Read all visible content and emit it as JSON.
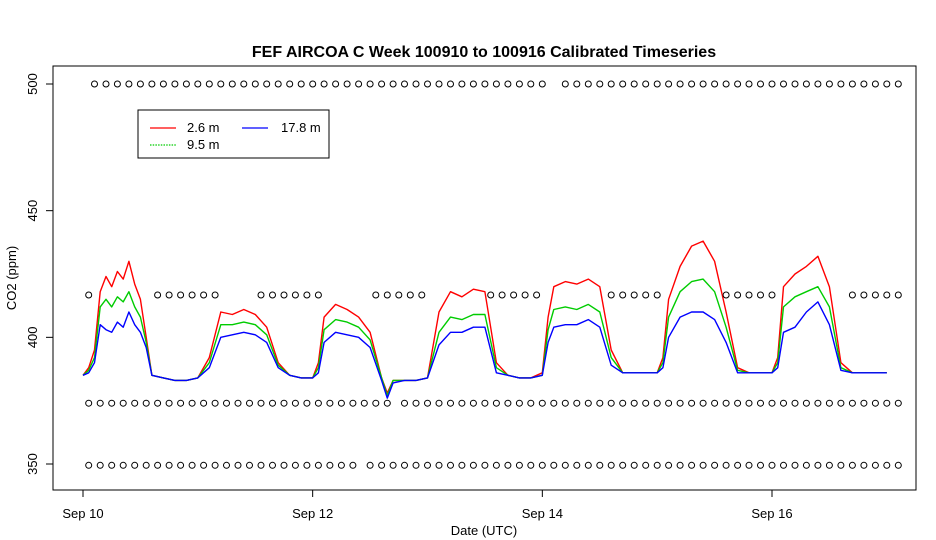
{
  "chart_data": {
    "type": "line",
    "title": "FEF AIRCOA C  Week 100910 to 100916  Calibrated Timeseries",
    "xlabel": "Date (UTC)",
    "ylabel": "CO2 (ppm)",
    "x_unit": "days since 2010-09-10 00:00 UTC",
    "xlim": [
      -0.05,
      7.2
    ],
    "ylim": [
      344,
      505
    ],
    "x_ticks": [
      {
        "value": 0,
        "label": "Sep 10"
      },
      {
        "value": 2,
        "label": "Sep 12"
      },
      {
        "value": 4,
        "label": "Sep 14"
      },
      {
        "value": 6,
        "label": "Sep 16"
      }
    ],
    "y_ticks": [
      {
        "value": 350,
        "label": "350"
      },
      {
        "value": 400,
        "label": "400"
      },
      {
        "value": 450,
        "label": "450"
      },
      {
        "value": 500,
        "label": "500"
      }
    ],
    "legend": {
      "position": "top-left",
      "entries": [
        {
          "label": "2.6 m",
          "color": "#ff0000"
        },
        {
          "label": "9.5 m",
          "color": "#00cc00"
        },
        {
          "label": "17.8 m",
          "color": "#0000ff"
        }
      ]
    },
    "series": [
      {
        "name": "2.6 m",
        "color": "#ff0000",
        "x": [
          0.0,
          0.05,
          0.1,
          0.15,
          0.2,
          0.25,
          0.3,
          0.35,
          0.4,
          0.45,
          0.5,
          0.55,
          0.6,
          0.7,
          0.8,
          0.9,
          1.0,
          1.1,
          1.2,
          1.3,
          1.4,
          1.5,
          1.6,
          1.7,
          1.8,
          1.9,
          2.0,
          2.05,
          2.1,
          2.2,
          2.3,
          2.4,
          2.5,
          2.6,
          2.65,
          2.7,
          2.8,
          2.9,
          3.0,
          3.1,
          3.2,
          3.3,
          3.4,
          3.5,
          3.6,
          3.7,
          3.8,
          3.9,
          4.0,
          4.05,
          4.1,
          4.2,
          4.3,
          4.4,
          4.5,
          4.6,
          4.7,
          4.8,
          4.9,
          5.0,
          5.05,
          5.1,
          5.2,
          5.3,
          5.4,
          5.5,
          5.6,
          5.7,
          5.8,
          5.9,
          6.0,
          6.05,
          6.1,
          6.2,
          6.3,
          6.4,
          6.5,
          6.6,
          6.7,
          6.8,
          6.9,
          7.0
        ],
        "y": [
          385,
          388,
          395,
          418,
          424,
          420,
          426,
          423,
          430,
          421,
          415,
          400,
          385,
          384,
          383,
          383,
          384,
          392,
          410,
          409,
          411,
          409,
          404,
          390,
          385,
          384,
          384,
          390,
          408,
          413,
          411,
          408,
          402,
          384,
          378,
          383,
          383,
          383,
          384,
          410,
          418,
          416,
          419,
          418,
          390,
          385,
          384,
          384,
          386,
          408,
          420,
          422,
          421,
          423,
          420,
          395,
          386,
          386,
          386,
          386,
          392,
          415,
          428,
          436,
          438,
          430,
          410,
          388,
          386,
          386,
          386,
          392,
          420,
          425,
          428,
          432,
          420,
          390,
          386,
          386,
          386,
          386
        ]
      },
      {
        "name": "9.5 m",
        "color": "#00cc00",
        "x": [
          0.0,
          0.05,
          0.1,
          0.15,
          0.2,
          0.25,
          0.3,
          0.35,
          0.4,
          0.45,
          0.5,
          0.55,
          0.6,
          0.7,
          0.8,
          0.9,
          1.0,
          1.1,
          1.2,
          1.3,
          1.4,
          1.5,
          1.6,
          1.7,
          1.8,
          1.9,
          2.0,
          2.05,
          2.1,
          2.2,
          2.3,
          2.4,
          2.5,
          2.6,
          2.65,
          2.7,
          2.8,
          2.9,
          3.0,
          3.1,
          3.2,
          3.3,
          3.4,
          3.5,
          3.6,
          3.7,
          3.8,
          3.9,
          4.0,
          4.05,
          4.1,
          4.2,
          4.3,
          4.4,
          4.5,
          4.6,
          4.7,
          4.8,
          4.9,
          5.0,
          5.05,
          5.1,
          5.2,
          5.3,
          5.4,
          5.5,
          5.6,
          5.7,
          5.8,
          5.9,
          6.0,
          6.05,
          6.1,
          6.2,
          6.3,
          6.4,
          6.5,
          6.6,
          6.7,
          6.8,
          6.9,
          7.0
        ],
        "y": [
          385,
          387,
          392,
          412,
          415,
          412,
          416,
          414,
          418,
          412,
          408,
          398,
          385,
          384,
          383,
          383,
          384,
          390,
          405,
          405,
          406,
          405,
          401,
          389,
          385,
          384,
          384,
          388,
          403,
          407,
          406,
          404,
          399,
          384,
          377,
          383,
          383,
          383,
          384,
          402,
          408,
          407,
          409,
          409,
          388,
          385,
          384,
          384,
          385,
          403,
          411,
          412,
          411,
          413,
          410,
          392,
          386,
          386,
          386,
          386,
          390,
          408,
          418,
          422,
          423,
          418,
          404,
          387,
          386,
          386,
          386,
          390,
          412,
          416,
          418,
          420,
          412,
          388,
          386,
          386,
          386,
          386
        ]
      },
      {
        "name": "17.8 m",
        "color": "#0000ff",
        "x": [
          0.0,
          0.05,
          0.1,
          0.15,
          0.2,
          0.25,
          0.3,
          0.35,
          0.4,
          0.45,
          0.5,
          0.55,
          0.6,
          0.7,
          0.8,
          0.9,
          1.0,
          1.1,
          1.2,
          1.3,
          1.4,
          1.5,
          1.6,
          1.7,
          1.8,
          1.9,
          2.0,
          2.05,
          2.1,
          2.2,
          2.3,
          2.4,
          2.5,
          2.6,
          2.65,
          2.7,
          2.8,
          2.9,
          3.0,
          3.1,
          3.2,
          3.3,
          3.4,
          3.5,
          3.6,
          3.7,
          3.8,
          3.9,
          4.0,
          4.05,
          4.1,
          4.2,
          4.3,
          4.4,
          4.5,
          4.6,
          4.7,
          4.8,
          4.9,
          5.0,
          5.05,
          5.1,
          5.2,
          5.3,
          5.4,
          5.5,
          5.6,
          5.7,
          5.8,
          5.9,
          6.0,
          6.05,
          6.1,
          6.2,
          6.3,
          6.4,
          6.5,
          6.6,
          6.7,
          6.8,
          6.9,
          7.0
        ],
        "y": [
          385,
          386,
          390,
          405,
          403,
          402,
          406,
          404,
          410,
          405,
          402,
          396,
          385,
          384,
          383,
          383,
          384,
          388,
          400,
          401,
          402,
          401,
          398,
          388,
          385,
          384,
          384,
          386,
          398,
          402,
          401,
          400,
          396,
          383,
          376,
          382,
          383,
          383,
          384,
          397,
          402,
          402,
          404,
          404,
          386,
          385,
          384,
          384,
          385,
          398,
          404,
          405,
          405,
          407,
          404,
          389,
          386,
          386,
          386,
          386,
          388,
          400,
          408,
          410,
          410,
          407,
          398,
          386,
          386,
          386,
          386,
          388,
          402,
          404,
          410,
          414,
          405,
          387,
          386,
          386,
          386,
          386
        ]
      }
    ],
    "flag_rows": [
      {
        "y": 500,
        "x": [
          0.1,
          0.2,
          0.3,
          0.4,
          0.5,
          0.6,
          0.7,
          0.8,
          0.9,
          1.0,
          1.1,
          1.2,
          1.3,
          1.4,
          1.5,
          1.6,
          1.7,
          1.8,
          1.9,
          2.0,
          2.1,
          2.2,
          2.3,
          2.4,
          2.5,
          2.6,
          2.7,
          2.8,
          2.9,
          3.0,
          3.1,
          3.2,
          3.3,
          3.4,
          3.5,
          3.6,
          3.7,
          3.8,
          3.9,
          4.0,
          4.2,
          4.3,
          4.4,
          4.5,
          4.6,
          4.7,
          4.8,
          4.9,
          5.0,
          5.1,
          5.2,
          5.3,
          5.4,
          5.5,
          5.6,
          5.7,
          5.8,
          5.9,
          6.0,
          6.1,
          6.2,
          6.3,
          6.4,
          6.5,
          6.6,
          6.7,
          6.8,
          6.9,
          7.0,
          7.1
        ]
      },
      {
        "y": 416.7,
        "x": [
          0.05,
          0.65,
          0.75,
          0.85,
          0.95,
          1.05,
          1.15,
          1.55,
          1.65,
          1.75,
          1.85,
          1.95,
          2.05,
          2.55,
          2.65,
          2.75,
          2.85,
          2.95,
          3.55,
          3.65,
          3.75,
          3.85,
          3.95,
          4.6,
          4.7,
          4.8,
          4.9,
          5.0,
          5.6,
          5.7,
          5.8,
          5.9,
          6.0,
          6.7,
          6.8,
          6.9,
          7.0,
          7.1
        ]
      },
      {
        "y": 374,
        "x": [
          0.05,
          0.15,
          0.25,
          0.35,
          0.45,
          0.55,
          0.65,
          0.75,
          0.85,
          0.95,
          1.05,
          1.15,
          1.25,
          1.35,
          1.45,
          1.55,
          1.65,
          1.75,
          1.85,
          1.95,
          2.05,
          2.15,
          2.25,
          2.35,
          2.45,
          2.55,
          2.65,
          2.8,
          2.9,
          3.0,
          3.1,
          3.2,
          3.3,
          3.4,
          3.5,
          3.6,
          3.7,
          3.8,
          3.9,
          4.0,
          4.1,
          4.2,
          4.3,
          4.4,
          4.5,
          4.6,
          4.7,
          4.8,
          4.9,
          5.0,
          5.1,
          5.2,
          5.3,
          5.4,
          5.5,
          5.6,
          5.7,
          5.8,
          5.9,
          6.0,
          6.1,
          6.2,
          6.3,
          6.4,
          6.5,
          6.6,
          6.7,
          6.8,
          6.9,
          7.0,
          7.1
        ]
      },
      {
        "y": 349.5,
        "x": [
          0.05,
          0.15,
          0.25,
          0.35,
          0.45,
          0.55,
          0.65,
          0.75,
          0.85,
          0.95,
          1.05,
          1.15,
          1.25,
          1.35,
          1.45,
          1.55,
          1.65,
          1.75,
          1.85,
          1.95,
          2.05,
          2.15,
          2.25,
          2.35,
          2.5,
          2.6,
          2.7,
          2.8,
          2.9,
          3.0,
          3.1,
          3.2,
          3.3,
          3.4,
          3.5,
          3.6,
          3.7,
          3.8,
          3.9,
          4.0,
          4.1,
          4.2,
          4.3,
          4.4,
          4.5,
          4.6,
          4.7,
          4.8,
          4.9,
          5.0,
          5.1,
          5.2,
          5.3,
          5.4,
          5.5,
          5.6,
          5.7,
          5.8,
          5.9,
          6.0,
          6.1,
          6.2,
          6.3,
          6.4,
          6.5,
          6.6,
          6.7,
          6.8,
          6.9,
          7.0,
          7.1
        ]
      }
    ]
  }
}
